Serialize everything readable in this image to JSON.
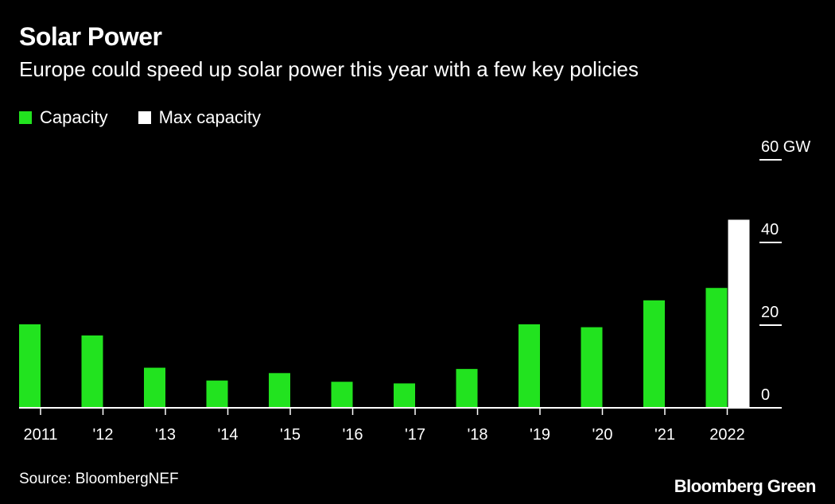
{
  "title": "Solar Power",
  "subtitle": "Europe could speed up solar power this year with a few key policies",
  "legend": {
    "capacity_label": "Capacity",
    "max_label": "Max capacity"
  },
  "colors": {
    "capacity": "#22e31f",
    "max_capacity": "#ffffff",
    "background": "#000000",
    "text": "#ffffff"
  },
  "chart_data": {
    "type": "bar",
    "title": "Solar Power",
    "subtitle": "Europe could speed up solar power this year with a few key policies",
    "xlabel": "",
    "ylabel": "",
    "ylim": [
      0,
      60
    ],
    "y_ticks": [
      {
        "value": 0,
        "label": "0"
      },
      {
        "value": 20,
        "label": "20"
      },
      {
        "value": 40,
        "label": "40"
      },
      {
        "value": 60,
        "label": "60 GW"
      }
    ],
    "categories": [
      "2011",
      "'12",
      "'13",
      "'14",
      "'15",
      "'16",
      "'17",
      "'18",
      "'19",
      "'20",
      "'21",
      "2022"
    ],
    "series": [
      {
        "name": "Capacity",
        "values": [
          20.2,
          17.5,
          9.7,
          6.6,
          8.4,
          6.3,
          5.9,
          9.4,
          20.2,
          19.5,
          26.0,
          29.0
        ]
      },
      {
        "name": "Max capacity",
        "values": [
          null,
          null,
          null,
          null,
          null,
          null,
          null,
          null,
          null,
          null,
          null,
          45.5
        ]
      }
    ],
    "legend_position": "top-left"
  },
  "source": "Source: BloombergNEF",
  "brand": "Bloomberg Green"
}
